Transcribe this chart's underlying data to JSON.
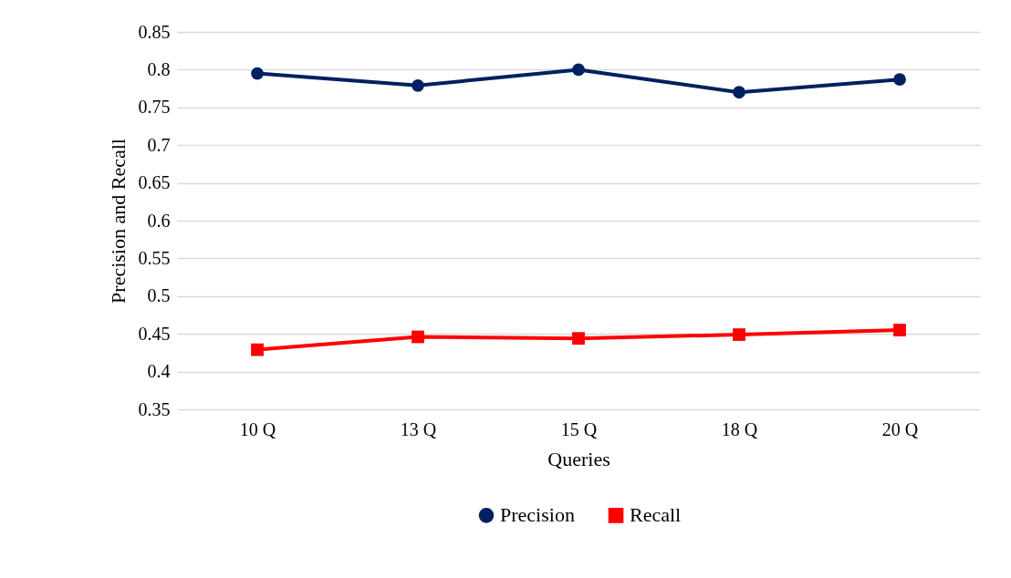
{
  "chart_data": {
    "type": "line",
    "xlabel": "Queries",
    "ylabel": "Precision and Recall",
    "categories": [
      "10 Q",
      "13 Q",
      "15 Q",
      "18 Q",
      "20 Q"
    ],
    "series": [
      {
        "name": "Precision",
        "color": "#002060",
        "marker": "circle",
        "values": [
          0.795,
          0.779,
          0.8,
          0.77,
          0.787
        ]
      },
      {
        "name": "Recall",
        "color": "#ff0000",
        "marker": "square",
        "values": [
          0.429,
          0.446,
          0.444,
          0.449,
          0.455
        ]
      }
    ],
    "ylim": [
      0.35,
      0.85
    ],
    "yticks": [
      0.35,
      0.4,
      0.45,
      0.5,
      0.55,
      0.6,
      0.65,
      0.7,
      0.75,
      0.8,
      0.85
    ],
    "grid": "y",
    "legend": "bottom"
  }
}
